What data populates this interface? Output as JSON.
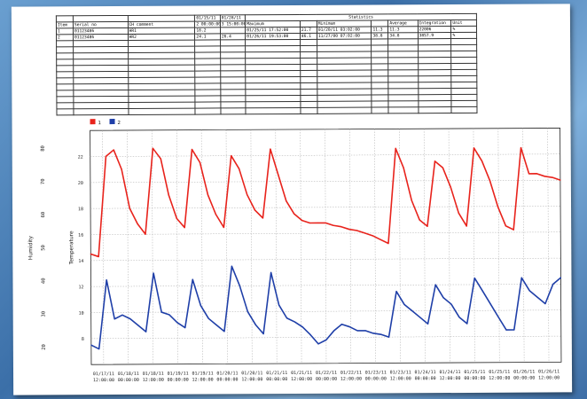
{
  "header_table": {
    "title": "Statistics",
    "row1": [
      "",
      "",
      "",
      "01/15/11",
      "01/28/11"
    ],
    "row2": [
      "Item",
      "Serial no",
      "CH comment",
      "2 00:00:00",
      "3 15:00:00",
      "Maximum",
      "",
      "Minimum",
      "",
      "Average",
      "Integration",
      "Unit"
    ],
    "rows": [
      [
        "1",
        "01123486",
        "HR1",
        "18.2",
        "",
        "01/25/11 17:52:00",
        "21.7",
        "01/20/11 03:02:00",
        "11.3",
        "11.3",
        "22006",
        "%"
      ],
      [
        "2",
        "01123486",
        "HR2",
        "24.1",
        "26.4",
        "01/26/11 19:53:00",
        "46.1",
        "11/27/00 07:02:00",
        "38.8",
        "34.8",
        "3857.9",
        "%"
      ]
    ]
  },
  "chart_data": {
    "type": "line",
    "legend": [
      {
        "id": "1",
        "color": "#e8231c"
      },
      {
        "id": "2",
        "color": "#1f3fa8"
      }
    ],
    "left_outer_axis": {
      "label": "Humidity",
      "ticks": [
        "20",
        "30",
        "40",
        "50",
        "60",
        "70",
        "80"
      ]
    },
    "left_inner_axis": {
      "label": "Temperature",
      "ticks": [
        "8",
        "10",
        "12",
        "14",
        "16",
        "18",
        "20",
        "22"
      ]
    },
    "ylim_inner": [
      6,
      24
    ],
    "x_ticks": [
      [
        "01/17/11",
        "12:00:00"
      ],
      [
        "01/18/11",
        "00:00:00"
      ],
      [
        "01/18/11",
        "12:00:00"
      ],
      [
        "01/19/11",
        "00:00:00"
      ],
      [
        "01/19/11",
        "12:00:00"
      ],
      [
        "01/20/11",
        "00:00:00"
      ],
      [
        "01/20/11",
        "12:00:00"
      ],
      [
        "01/21/11",
        "00:00:00"
      ],
      [
        "01/21/11",
        "12:00:00"
      ],
      [
        "01/22/11",
        "00:00:00"
      ],
      [
        "01/22/11",
        "12:00:00"
      ],
      [
        "01/23/11",
        "00:00:00"
      ],
      [
        "01/23/11",
        "12:00:00"
      ],
      [
        "01/24/11",
        "00:00:00"
      ],
      [
        "01/24/11",
        "12:00:00"
      ],
      [
        "01/25/11",
        "00:00:00"
      ],
      [
        "01/25/11",
        "12:00:00"
      ],
      [
        "01/26/11",
        "00:00:00"
      ],
      [
        "01/26/11",
        "12:00:00"
      ]
    ],
    "series": [
      {
        "id": "1",
        "color": "#e8231c",
        "x": [
          0,
          0.3,
          0.6,
          0.9,
          1.2,
          1.5,
          1.8,
          2.1,
          2.4,
          2.7,
          3.0,
          3.3,
          3.6,
          3.9,
          4.2,
          4.5,
          4.8,
          5.1,
          5.4,
          5.7,
          6.0,
          6.3,
          6.6,
          6.9,
          7.2,
          7.5,
          7.8,
          8.1,
          8.4,
          8.7,
          9.0,
          9.3,
          9.6,
          9.9,
          10.2,
          10.5,
          10.8,
          11.1,
          11.4,
          11.7,
          12.0,
          12.3,
          12.6,
          12.9,
          13.2,
          13.5,
          13.8,
          14.1,
          14.4,
          14.7,
          15.0,
          15.3,
          15.6,
          15.9,
          16.2,
          16.5,
          16.8,
          17.1,
          17.4,
          17.7,
          18.0
        ],
        "y": [
          14.5,
          14.3,
          22.0,
          22.5,
          21.0,
          18.0,
          16.8,
          16.0,
          22.6,
          21.8,
          19.0,
          17.2,
          16.5,
          22.5,
          21.5,
          19.0,
          17.5,
          16.5,
          22.0,
          21.0,
          19.0,
          17.8,
          17.2,
          22.5,
          20.5,
          18.5,
          17.5,
          17.0,
          16.8,
          16.8,
          16.8,
          16.6,
          16.5,
          16.3,
          16.2,
          16.0,
          15.8,
          15.5,
          15.2,
          22.5,
          21.0,
          18.5,
          17.0,
          16.5,
          21.5,
          21.0,
          19.5,
          17.5,
          16.5,
          22.5,
          21.5,
          20.0,
          18.0,
          16.5,
          16.2,
          22.5,
          20.5,
          20.5,
          20.3,
          20.2,
          20.0
        ]
      },
      {
        "id": "2",
        "color": "#1f3fa8",
        "x": [
          0,
          0.3,
          0.6,
          0.9,
          1.2,
          1.5,
          1.8,
          2.1,
          2.4,
          2.7,
          3.0,
          3.3,
          3.6,
          3.9,
          4.2,
          4.5,
          4.8,
          5.1,
          5.4,
          5.7,
          6.0,
          6.3,
          6.6,
          6.9,
          7.2,
          7.5,
          7.8,
          8.1,
          8.4,
          8.7,
          9.0,
          9.3,
          9.6,
          9.9,
          10.2,
          10.5,
          10.8,
          11.1,
          11.4,
          11.7,
          12.0,
          12.3,
          12.6,
          12.9,
          13.2,
          13.5,
          13.8,
          14.1,
          14.4,
          14.7,
          15.0,
          15.3,
          15.6,
          15.9,
          16.2,
          16.5,
          16.8,
          17.1,
          17.4,
          17.7,
          18.0
        ],
        "y": [
          7.5,
          7.2,
          12.5,
          9.5,
          9.8,
          9.5,
          9.0,
          8.5,
          13.0,
          10.0,
          9.8,
          9.2,
          8.8,
          12.5,
          10.5,
          9.5,
          9.0,
          8.5,
          13.5,
          12.0,
          10.0,
          9.0,
          8.3,
          13.0,
          10.5,
          9.5,
          9.2,
          8.8,
          8.2,
          7.5,
          7.8,
          8.5,
          9.0,
          8.8,
          8.5,
          8.5,
          8.3,
          8.2,
          8.0,
          11.5,
          10.5,
          10.0,
          9.5,
          9.0,
          12.0,
          11.0,
          10.5,
          9.5,
          9.0,
          12.5,
          11.5,
          10.5,
          9.5,
          8.5,
          8.5,
          12.5,
          11.5,
          11.0,
          10.5,
          12.0,
          12.5
        ]
      }
    ]
  }
}
